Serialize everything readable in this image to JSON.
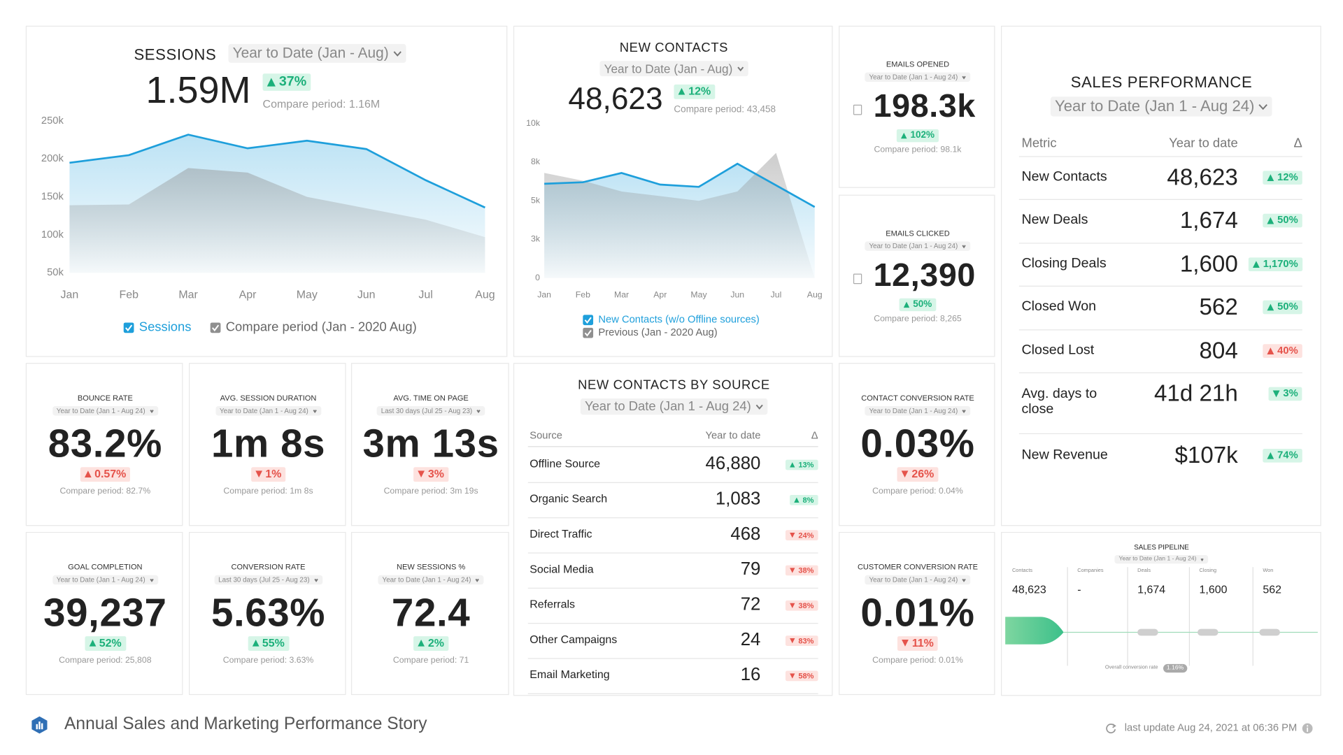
{
  "chart_data": [
    {
      "type": "line",
      "title": "SESSIONS",
      "period": "Year to Date (Jan - Aug)",
      "total": "1.59M",
      "change": "37%",
      "trend": "up",
      "change_color": "green",
      "compare": "Compare period: 1.16M",
      "categories": [
        "Jan",
        "Feb",
        "Mar",
        "Apr",
        "May",
        "Jun",
        "Jul",
        "Aug"
      ],
      "series": [
        {
          "name": "Sessions",
          "color": "#1e9fdb",
          "values": [
            195000,
            205000,
            232000,
            214000,
            224000,
            213000,
            172000,
            136000
          ]
        },
        {
          "name": "Compare period (Jan - 2020 Aug)",
          "color": "#8f8f8f",
          "values": [
            139000,
            140000,
            188000,
            182000,
            150000,
            135000,
            120000,
            97000
          ]
        }
      ],
      "ylim": [
        50000,
        250000
      ],
      "yticks": [
        {
          "value": 50000,
          "label": "50k"
        },
        {
          "value": 100000,
          "label": "100k"
        },
        {
          "value": 150000,
          "label": "150k"
        },
        {
          "value": 200000,
          "label": "200k"
        },
        {
          "value": 250000,
          "label": "250k"
        }
      ],
      "grid": false
    },
    {
      "type": "line",
      "title": "NEW CONTACTS",
      "period": "Year to Date (Jan - Aug)",
      "total": "48,623",
      "change": "12%",
      "trend": "up",
      "change_color": "green",
      "compare": "Compare period: 43,458",
      "categories": [
        "Jan",
        "Feb",
        "Mar",
        "Apr",
        "May",
        "Jun",
        "Jul",
        "Aug"
      ],
      "series": [
        {
          "name": "New Contacts (w/o Offline sources)",
          "color": "#1e9fdb",
          "values": [
            6100,
            6200,
            6800,
            6050,
            5900,
            7400,
            6000,
            4600
          ]
        },
        {
          "name": "Previous (Jan - 2020 Aug)",
          "color": "#8f8f8f",
          "values": [
            6800,
            6300,
            5600,
            5300,
            5000,
            5600,
            8100,
            0
          ]
        }
      ],
      "ylim": [
        0,
        10000
      ],
      "yticks": [
        0,
        {
          "value": 2500,
          "label": "3k"
        },
        {
          "value": 5000,
          "label": "5k"
        },
        {
          "value": 7500,
          "label": "8k"
        },
        {
          "value": 10000,
          "label": "10k"
        }
      ],
      "grid": false
    }
  ],
  "metrics": [
    {
      "title": "EMAILS OPENED",
      "period": "Year to Date (Jan 1 - Aug 24)",
      "value": "198.3k",
      "change": "102%",
      "trend": "up",
      "change_color": "green",
      "compare": "Compare period: 98.1k"
    },
    {
      "title": "EMAILS CLICKED",
      "period": "Year to Date (Jan 1 - Aug 24)",
      "value": "12,390",
      "change": "50%",
      "trend": "up",
      "change_color": "green",
      "compare": "Compare period: 8,265"
    },
    {
      "title": "BOUNCE RATE",
      "period": "Year to Date (Jan 1 - Aug 24)",
      "value": "83.2%",
      "change": "0.57%",
      "trend": "up",
      "change_color": "red",
      "compare": "Compare period: 82.7%"
    },
    {
      "title": "AVG. SESSION DURATION",
      "period": "Year to Date (Jan 1 - Aug 24)",
      "value": "1m 8s",
      "change": "1%",
      "trend": "down",
      "change_color": "red",
      "compare": "Compare period: 1m 8s"
    },
    {
      "title": "AVG. TIME ON PAGE",
      "period": "Last 30 days (Jul 25 - Aug 23)",
      "value": "3m 13s",
      "change": "3%",
      "trend": "down",
      "change_color": "red",
      "compare": "Compare period: 3m 19s"
    },
    {
      "title": "CONTACT CONVERSION RATE",
      "period": "Year to Date (Jan 1 - Aug 24)",
      "value": "0.03%",
      "change": "26%",
      "trend": "down",
      "change_color": "red",
      "compare": "Compare period: 0.04%"
    },
    {
      "title": "GOAL COMPLETION",
      "period": "Year to Date (Jan 1 - Aug 24)",
      "value": "39,237",
      "change": "52%",
      "trend": "up",
      "change_color": "green",
      "compare": "Compare period: 25,808"
    },
    {
      "title": "CONVERSION RATE",
      "period": "Last 30 days (Jul 25 - Aug 23)",
      "value": "5.63%",
      "change": "55%",
      "trend": "up",
      "change_color": "green",
      "compare": "Compare period: 3.63%"
    },
    {
      "title": "NEW SESSIONS %",
      "period": "Year to Date (Jan 1 - Aug 24)",
      "value": "72.4",
      "change": "2%",
      "trend": "up",
      "change_color": "green",
      "compare": "Compare period: 71"
    },
    {
      "title": "CUSTOMER CONVERSION RATE",
      "period": "Year to Date (Jan 1 - Aug 24)",
      "value": "0.01%",
      "change": "11%",
      "trend": "down",
      "change_color": "red",
      "compare": "Compare period: 0.01%"
    }
  ],
  "sources_table": {
    "title": "NEW CONTACTS BY SOURCE",
    "period": "Year to Date (Jan 1 - Aug 24)",
    "headers": [
      "Source",
      "Year to date",
      "Δ"
    ],
    "rows": [
      {
        "label": "Offline Source",
        "value": "46,880",
        "change": "13%",
        "trend": "up",
        "change_color": "green"
      },
      {
        "label": "Organic Search",
        "value": "1,083",
        "change": "8%",
        "trend": "up",
        "change_color": "green"
      },
      {
        "label": "Direct Traffic",
        "value": "468",
        "change": "24%",
        "trend": "down",
        "change_color": "red"
      },
      {
        "label": "Social Media",
        "value": "79",
        "change": "38%",
        "trend": "down",
        "change_color": "red"
      },
      {
        "label": "Referrals",
        "value": "72",
        "change": "38%",
        "trend": "down",
        "change_color": "red"
      },
      {
        "label": "Other Campaigns",
        "value": "24",
        "change": "83%",
        "trend": "down",
        "change_color": "red"
      },
      {
        "label": "Email Marketing",
        "value": "16",
        "change": "58%",
        "trend": "down",
        "change_color": "red"
      }
    ]
  },
  "sales_performance": {
    "title": "SALES PERFORMANCE",
    "period": "Year to Date (Jan 1 - Aug 24)",
    "headers": [
      "Metric",
      "Year to date",
      "Δ"
    ],
    "rows": [
      {
        "label": "New Contacts",
        "value": "48,623",
        "change": "12%",
        "trend": "up",
        "change_color": "green"
      },
      {
        "label": "New Deals",
        "value": "1,674",
        "change": "50%",
        "trend": "up",
        "change_color": "green"
      },
      {
        "label": "Closing Deals",
        "value": "1,600",
        "change": "1,170%",
        "trend": "up",
        "change_color": "green"
      },
      {
        "label": "Closed Won",
        "value": "562",
        "change": "50%",
        "trend": "up",
        "change_color": "green"
      },
      {
        "label": "Closed Lost",
        "value": "804",
        "change": "40%",
        "trend": "up",
        "change_color": "red"
      },
      {
        "label": "Avg. days to close",
        "value": "41d 21h",
        "change": "3%",
        "trend": "down",
        "change_color": "green"
      },
      {
        "label": "New Revenue",
        "value": "$107k",
        "change": "74%",
        "trend": "up",
        "change_color": "green"
      }
    ]
  },
  "sales_pipeline": {
    "title": "SALES PIPELINE",
    "period": "Year to Date (Jan 1 - Aug 24)",
    "stages": [
      {
        "label": "Contacts",
        "value": "48,623"
      },
      {
        "label": "Companies",
        "value": "-"
      },
      {
        "label": "Deals",
        "value": "1,674"
      },
      {
        "label": "Closing",
        "value": "1,600"
      },
      {
        "label": "Won",
        "value": "562"
      }
    ],
    "overall_label": "Overall conversion rate",
    "overall": "1.16%"
  },
  "footer": {
    "title": "Annual Sales and Marketing Performance Story",
    "last_update": "last update Aug 24, 2021 at 06:36 PM"
  }
}
